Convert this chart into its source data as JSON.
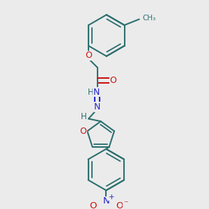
{
  "bg_color": "#ebebeb",
  "bond_color": "#2d7070",
  "N_color": "#2222cc",
  "O_color": "#cc1111",
  "lw": 1.5,
  "fig_w": 3.0,
  "fig_h": 3.0,
  "dpi": 100,
  "xlim": [
    0,
    10
  ],
  "ylim": [
    0,
    10
  ]
}
